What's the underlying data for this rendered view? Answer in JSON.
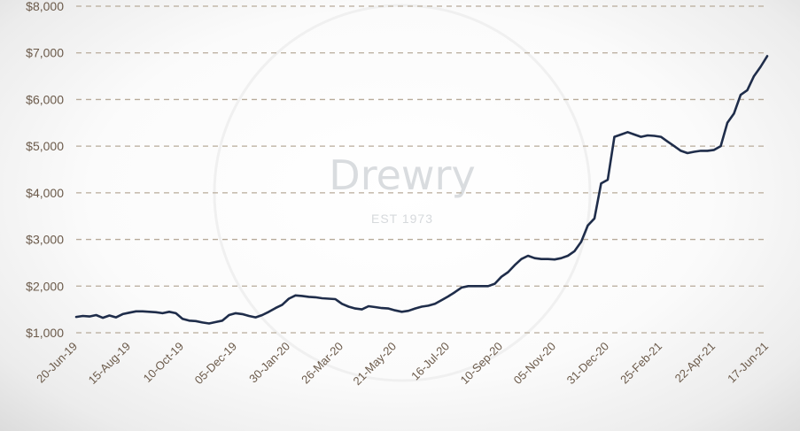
{
  "chart_data": {
    "type": "line",
    "title": "",
    "xlabel": "",
    "ylabel": "",
    "ylim": [
      1000,
      8000
    ],
    "y_ticks": [
      "$1,000",
      "$2,000",
      "$3,000",
      "$4,000",
      "$5,000",
      "$6,000",
      "$7,000",
      "$8,000"
    ],
    "y_tick_values": [
      1000,
      2000,
      3000,
      4000,
      5000,
      6000,
      7000,
      8000
    ],
    "x_ticks": [
      "20-Jun-19",
      "15-Aug-19",
      "10-Oct-19",
      "05-Dec-19",
      "30-Jan-20",
      "26-Mar-20",
      "21-May-20",
      "16-Jul-20",
      "10-Sep-20",
      "05-Nov-20",
      "31-Dec-20",
      "25-Feb-21",
      "22-Apr-21",
      "17-Jun-21"
    ],
    "grid": true,
    "grid_style": "dashed",
    "line_color": "#1f2d4a",
    "grid_color": "#b8ab9a",
    "tick_label_color": "#6b5a4a",
    "watermark": {
      "logo_text": "Drewry",
      "tagline": "EST 1973"
    },
    "series": [
      {
        "name": "",
        "x": [
          "20-Jun-19",
          "27-Jun-19",
          "04-Jul-19",
          "11-Jul-19",
          "18-Jul-19",
          "25-Jul-19",
          "01-Aug-19",
          "08-Aug-19",
          "15-Aug-19",
          "22-Aug-19",
          "29-Aug-19",
          "05-Sep-19",
          "12-Sep-19",
          "19-Sep-19",
          "26-Sep-19",
          "03-Oct-19",
          "10-Oct-19",
          "17-Oct-19",
          "24-Oct-19",
          "31-Oct-19",
          "07-Nov-19",
          "14-Nov-19",
          "21-Nov-19",
          "28-Nov-19",
          "05-Dec-19",
          "12-Dec-19",
          "19-Dec-19",
          "26-Dec-19",
          "02-Jan-20",
          "09-Jan-20",
          "16-Jan-20",
          "23-Jan-20",
          "30-Jan-20",
          "06-Feb-20",
          "13-Feb-20",
          "20-Feb-20",
          "27-Feb-20",
          "05-Mar-20",
          "12-Mar-20",
          "19-Mar-20",
          "26-Mar-20",
          "02-Apr-20",
          "09-Apr-20",
          "16-Apr-20",
          "23-Apr-20",
          "30-Apr-20",
          "07-May-20",
          "14-May-20",
          "21-May-20",
          "28-May-20",
          "04-Jun-20",
          "11-Jun-20",
          "18-Jun-20",
          "25-Jun-20",
          "02-Jul-20",
          "09-Jul-20",
          "16-Jul-20",
          "23-Jul-20",
          "30-Jul-20",
          "06-Aug-20",
          "13-Aug-20",
          "20-Aug-20",
          "27-Aug-20",
          "03-Sep-20",
          "10-Sep-20",
          "17-Sep-20",
          "24-Sep-20",
          "01-Oct-20",
          "08-Oct-20",
          "15-Oct-20",
          "22-Oct-20",
          "29-Oct-20",
          "05-Nov-20",
          "12-Nov-20",
          "19-Nov-20",
          "26-Nov-20",
          "03-Dec-20",
          "10-Dec-20",
          "17-Dec-20",
          "24-Dec-20",
          "31-Dec-20",
          "07-Jan-21",
          "14-Jan-21",
          "21-Jan-21",
          "28-Jan-21",
          "04-Feb-21",
          "11-Feb-21",
          "18-Feb-21",
          "25-Feb-21",
          "04-Mar-21",
          "11-Mar-21",
          "18-Mar-21",
          "25-Mar-21",
          "01-Apr-21",
          "08-Apr-21",
          "15-Apr-21",
          "22-Apr-21",
          "29-Apr-21",
          "06-May-21",
          "13-May-21",
          "20-May-21",
          "27-May-21",
          "03-Jun-21",
          "10-Jun-21",
          "17-Jun-21"
        ],
        "values": [
          1340,
          1360,
          1350,
          1380,
          1320,
          1370,
          1330,
          1400,
          1430,
          1460,
          1460,
          1450,
          1440,
          1420,
          1450,
          1420,
          1300,
          1260,
          1250,
          1220,
          1200,
          1230,
          1260,
          1380,
          1420,
          1400,
          1360,
          1330,
          1380,
          1450,
          1530,
          1600,
          1730,
          1800,
          1790,
          1770,
          1760,
          1740,
          1730,
          1720,
          1620,
          1560,
          1520,
          1500,
          1570,
          1550,
          1530,
          1520,
          1480,
          1450,
          1470,
          1520,
          1560,
          1580,
          1620,
          1700,
          1780,
          1870,
          1970,
          2000,
          2000,
          2000,
          2000,
          2050,
          2200,
          2300,
          2450,
          2580,
          2650,
          2600,
          2580,
          2580,
          2570,
          2600,
          2650,
          2750,
          2950,
          3300,
          3450,
          4200,
          4280,
          5200,
          5250,
          5300,
          5250,
          5200,
          5230,
          5220,
          5200,
          5100,
          5000,
          4900,
          4850,
          4880,
          4900,
          4900,
          4920,
          5000,
          5500,
          5700,
          6100,
          6200,
          6500,
          6700,
          6930
        ]
      }
    ]
  }
}
